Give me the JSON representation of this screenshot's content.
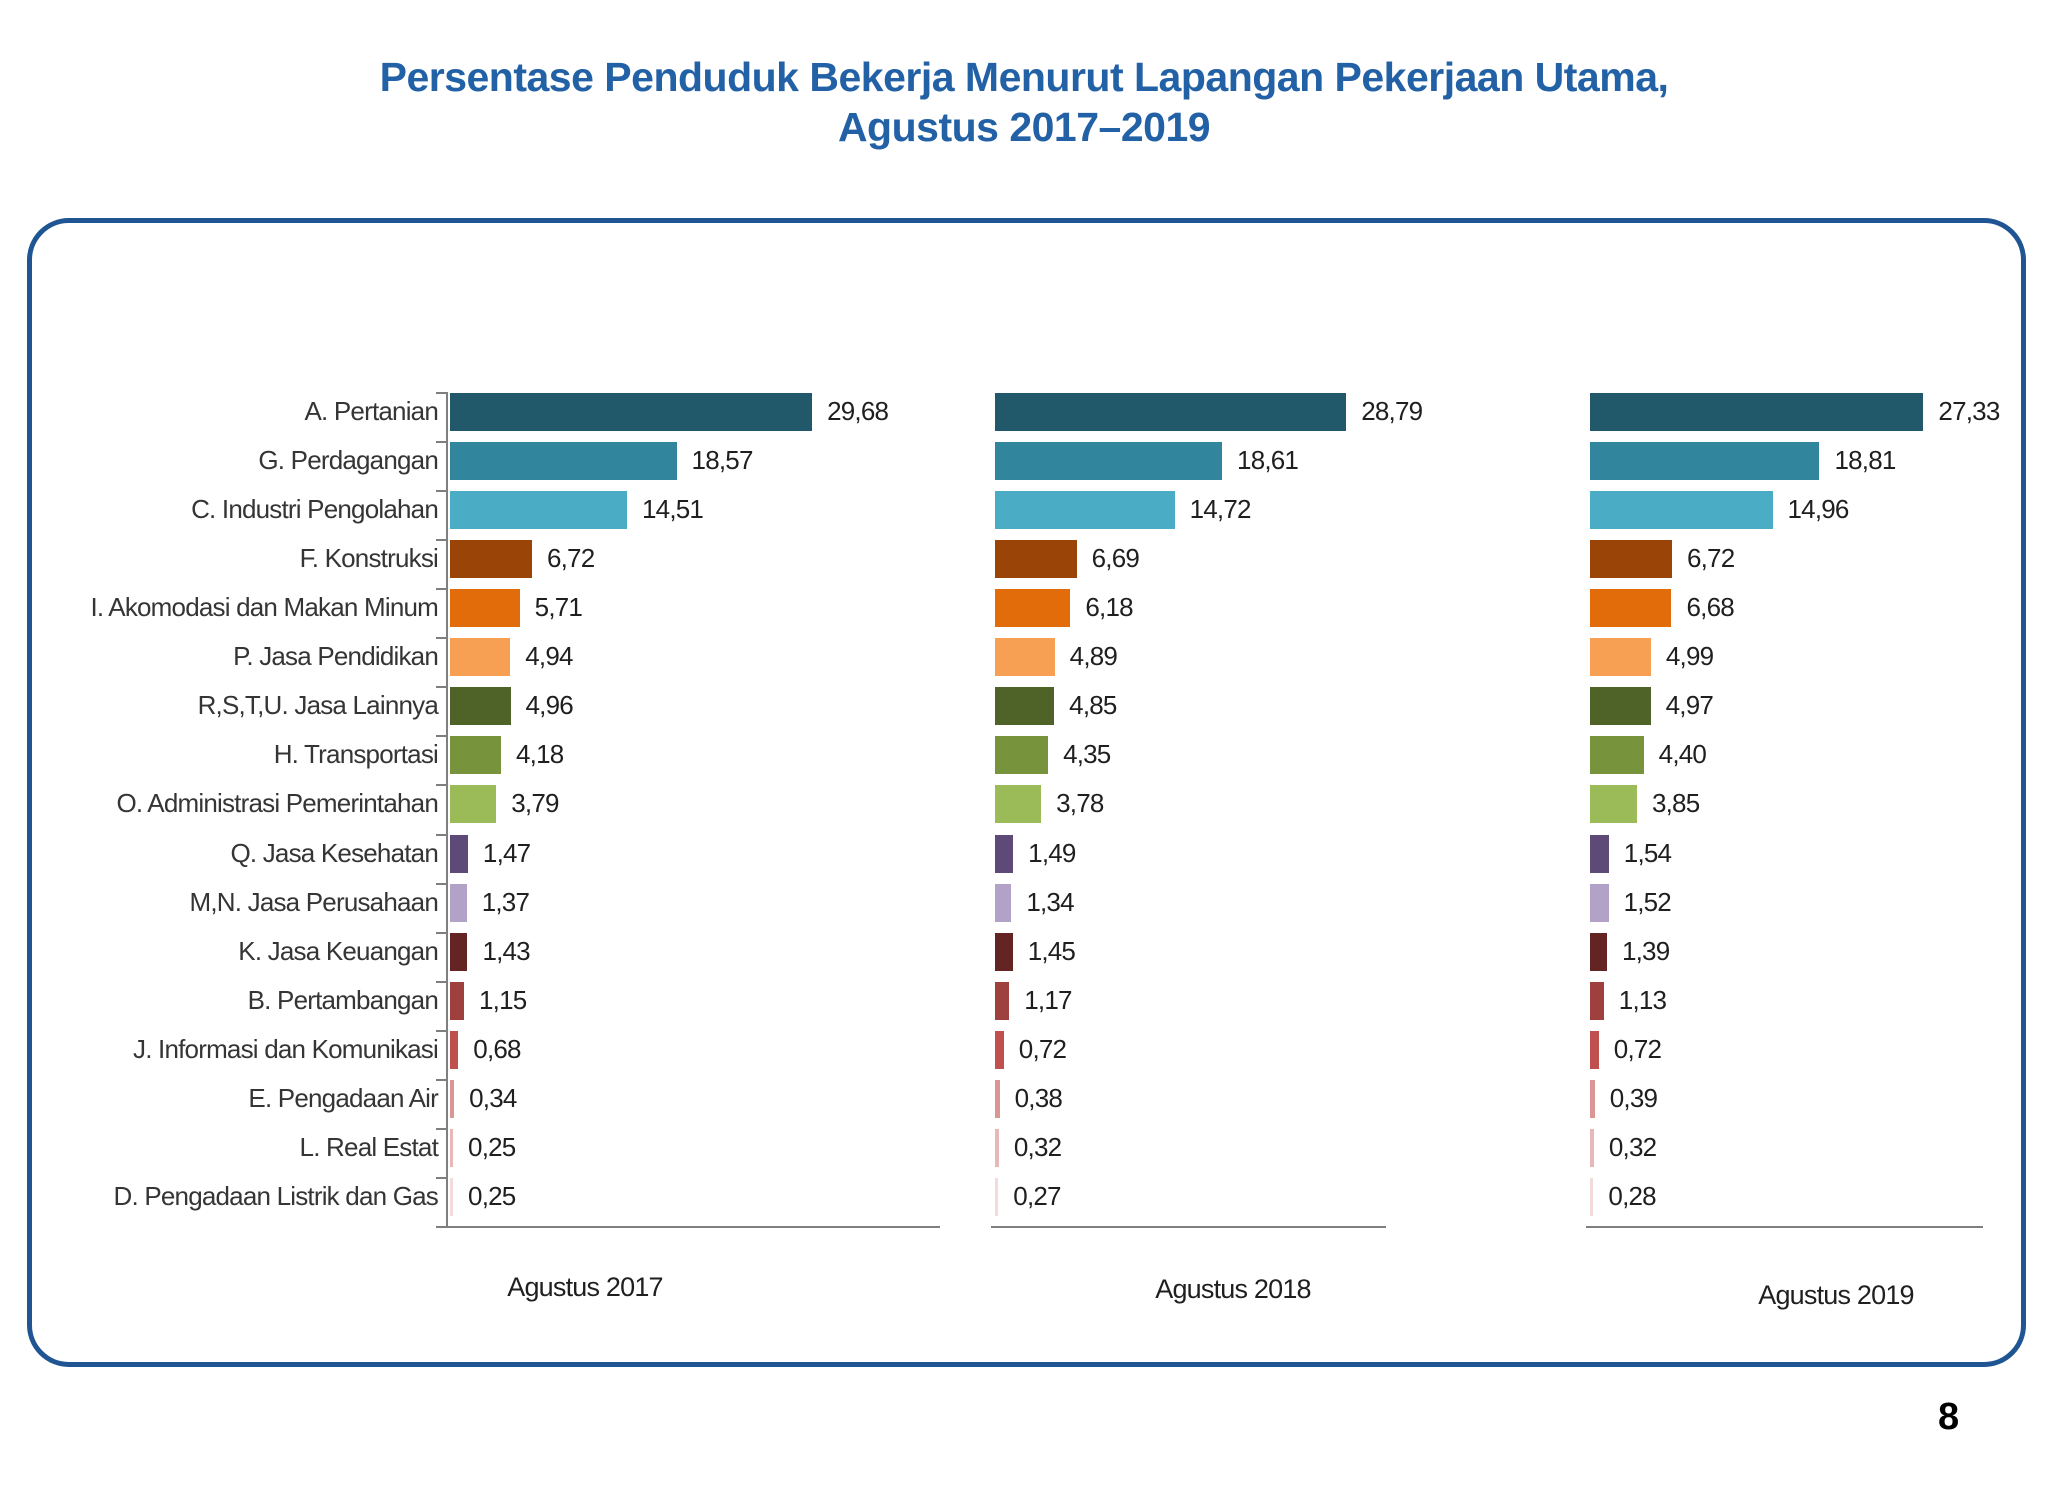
{
  "page": {
    "page_number": "8"
  },
  "title": {
    "line1": "Persentase Penduduk Bekerja Menurut Lapangan Pekerjaan Utama,",
    "line2": "Agustus 2017–2019",
    "color": "#2361A6"
  },
  "frame": {
    "border_color": "#1F5593"
  },
  "chart_data": {
    "type": "bar",
    "orientation": "horizontal",
    "layout": "three small-multiple panels sharing one category axis",
    "categories": [
      "A. Pertanian",
      "G. Perdagangan",
      "C. Industri Pengolahan",
      "F. Konstruksi",
      "I. Akomodasi dan Makan Minum",
      "P. Jasa Pendidikan",
      "R,S,T,U. Jasa Lainnya",
      "H. Transportasi",
      "O. Administrasi Pemerintahan",
      "Q. Jasa Kesehatan",
      "M,N. Jasa Perusahaan",
      "K. Jasa Keuangan",
      "B. Pertambangan",
      "J. Informasi dan Komunikasi",
      "E. Pengadaan Air",
      "L. Real Estat",
      "D. Pengadaan Listrik dan Gas"
    ],
    "series": [
      {
        "name": "Agustus 2017",
        "values": [
          29.68,
          18.57,
          14.51,
          6.72,
          5.71,
          4.94,
          4.96,
          4.18,
          3.79,
          1.47,
          1.37,
          1.43,
          1.15,
          0.68,
          0.34,
          0.25,
          0.25
        ]
      },
      {
        "name": "Agustus 2018",
        "values": [
          28.79,
          18.61,
          14.72,
          6.69,
          6.18,
          4.89,
          4.85,
          4.35,
          3.78,
          1.49,
          1.34,
          1.45,
          1.17,
          0.72,
          0.38,
          0.32,
          0.27
        ]
      },
      {
        "name": "Agustus 2019",
        "values": [
          27.33,
          18.81,
          14.96,
          6.72,
          6.68,
          4.99,
          4.97,
          4.4,
          3.85,
          1.54,
          1.52,
          1.39,
          1.13,
          0.72,
          0.39,
          0.32,
          0.28
        ]
      }
    ],
    "bar_colors": [
      "#21586A",
      "#31859C",
      "#4BACC6",
      "#9A4507",
      "#E36C0A",
      "#F79F53",
      "#4F6228",
      "#77933C",
      "#9BBB59",
      "#5D4A78",
      "#B3A2C7",
      "#632423",
      "#9E403E",
      "#C0504D",
      "#D99694",
      "#E6B9B8",
      "#F2DCDB"
    ],
    "value_label_decimal_separator": ",",
    "value_label_decimals": 2,
    "xlim": [
      0,
      40
    ],
    "grid": false,
    "legend": false,
    "axis_color": "#7F7F7F"
  }
}
